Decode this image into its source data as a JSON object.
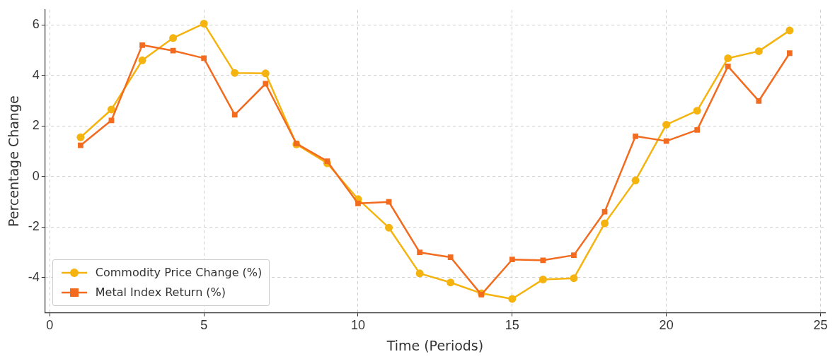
{
  "chart_data": {
    "type": "line",
    "xlabel": "Time (Periods)",
    "ylabel": "Percentage Change",
    "x": [
      1,
      2,
      3,
      4,
      5,
      6,
      7,
      8,
      9,
      10,
      11,
      12,
      13,
      14,
      15,
      16,
      17,
      18,
      19,
      20,
      21,
      22,
      23,
      24
    ],
    "series": [
      {
        "name": "Commodity Price Change (%)",
        "color": "#f5b30f",
        "marker": "circle",
        "values": [
          1.55,
          2.65,
          4.6,
          5.48,
          6.05,
          4.1,
          4.08,
          1.27,
          0.52,
          -0.9,
          -2.03,
          -3.84,
          -4.2,
          -4.63,
          -4.85,
          -4.08,
          -4.03,
          -1.86,
          -0.16,
          2.05,
          2.6,
          4.68,
          4.96,
          5.78
        ]
      },
      {
        "name": "Metal Index Return (%)",
        "color": "#f26b1f",
        "marker": "square",
        "values": [
          1.23,
          2.22,
          5.2,
          4.98,
          4.68,
          2.44,
          3.67,
          1.3,
          0.6,
          -1.07,
          -1.01,
          -3.01,
          -3.2,
          -4.68,
          -3.29,
          -3.32,
          -3.12,
          -1.4,
          1.59,
          1.4,
          1.84,
          4.36,
          2.99,
          4.88
        ]
      }
    ],
    "xlim": [
      -0.15,
      25.15
    ],
    "ylim": [
      -5.4,
      6.6
    ],
    "xticks": [
      0,
      5,
      10,
      15,
      20,
      25
    ],
    "yticks": [
      -4,
      -2,
      0,
      2,
      4,
      6
    ],
    "grid": true,
    "legend": "bottom left",
    "line_style": "solid"
  }
}
